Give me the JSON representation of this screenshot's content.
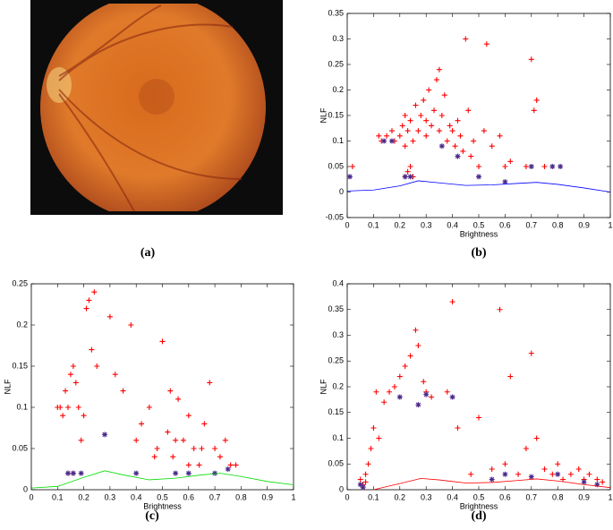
{
  "image_caption": "(a)",
  "chart_data": [
    {
      "type": "scatter",
      "caption": "(b)",
      "xlabel": "Brightness",
      "ylabel": "NLF",
      "xlim": [
        0,
        1
      ],
      "xticks": [
        0,
        0.1,
        0.2,
        0.3,
        0.4,
        0.5,
        0.6,
        0.7,
        0.8,
        0.9,
        1
      ],
      "ylim": [
        -0.05,
        0.35
      ],
      "yticks": [
        -0.05,
        0,
        0.05,
        0.1,
        0.15,
        0.2,
        0.25,
        0.3,
        0.35
      ],
      "series": [
        {
          "type": "scatter",
          "marker": "+",
          "color": "#ff0000",
          "x": [
            0.02,
            0.12,
            0.13,
            0.15,
            0.17,
            0.18,
            0.2,
            0.21,
            0.22,
            0.22,
            0.23,
            0.24,
            0.25,
            0.26,
            0.27,
            0.28,
            0.29,
            0.3,
            0.3,
            0.31,
            0.32,
            0.33,
            0.34,
            0.35,
            0.35,
            0.36,
            0.37,
            0.38,
            0.39,
            0.4,
            0.41,
            0.42,
            0.43,
            0.44,
            0.45,
            0.46,
            0.47,
            0.48,
            0.5,
            0.52,
            0.53,
            0.55,
            0.58,
            0.6,
            0.62,
            0.68,
            0.7,
            0.71,
            0.72,
            0.75,
            0.22,
            0.23,
            0.24,
            0.25
          ],
          "values": [
            0.05,
            0.11,
            0.1,
            0.11,
            0.12,
            0.1,
            0.11,
            0.13,
            0.15,
            0.09,
            0.12,
            0.14,
            0.1,
            0.17,
            0.12,
            0.15,
            0.18,
            0.11,
            0.14,
            0.2,
            0.13,
            0.16,
            0.22,
            0.24,
            0.12,
            0.15,
            0.19,
            0.1,
            0.13,
            0.12,
            0.09,
            0.14,
            0.11,
            0.08,
            0.3,
            0.16,
            0.07,
            0.1,
            0.05,
            0.12,
            0.29,
            0.09,
            0.11,
            0.05,
            0.06,
            0.05,
            0.26,
            0.16,
            0.18,
            0.05,
            0.03,
            0.04,
            0.05,
            0.03
          ]
        },
        {
          "type": "scatter",
          "marker": "*",
          "color": "#4b2a8c",
          "x": [
            0.01,
            0.14,
            0.17,
            0.22,
            0.24,
            0.36,
            0.42,
            0.5,
            0.6,
            0.7,
            0.78,
            0.81
          ],
          "values": [
            0.03,
            0.1,
            0.1,
            0.03,
            0.03,
            0.09,
            0.07,
            0.03,
            0.02,
            0.05,
            0.05,
            0.05
          ]
        },
        {
          "type": "line",
          "color": "#0000ff",
          "x": [
            0,
            0.1,
            0.2,
            0.27,
            0.35,
            0.45,
            0.55,
            0.65,
            0.72,
            0.8,
            0.9,
            1
          ],
          "values": [
            0.002,
            0.004,
            0.012,
            0.022,
            0.018,
            0.013,
            0.014,
            0.017,
            0.019,
            0.015,
            0.008,
            0.0
          ]
        }
      ]
    },
    {
      "type": "scatter",
      "caption": "(c)",
      "xlabel": "Brightness",
      "ylabel": "NLF",
      "xlim": [
        0,
        1
      ],
      "xticks": [
        0,
        0.1,
        0.2,
        0.3,
        0.4,
        0.5,
        0.6,
        0.7,
        0.8,
        0.9,
        1
      ],
      "ylim": [
        0,
        0.25
      ],
      "yticks": [
        0,
        0.05,
        0.1,
        0.15,
        0.2,
        0.25
      ],
      "series": [
        {
          "type": "scatter",
          "marker": "+",
          "color": "#ff0000",
          "x": [
            0.1,
            0.11,
            0.12,
            0.13,
            0.14,
            0.15,
            0.16,
            0.17,
            0.18,
            0.19,
            0.2,
            0.21,
            0.22,
            0.23,
            0.24,
            0.25,
            0.3,
            0.32,
            0.35,
            0.38,
            0.4,
            0.42,
            0.45,
            0.48,
            0.5,
            0.52,
            0.54,
            0.56,
            0.58,
            0.6,
            0.62,
            0.64,
            0.66,
            0.68,
            0.7,
            0.72,
            0.74,
            0.76,
            0.78,
            0.53,
            0.47,
            0.55,
            0.6,
            0.65,
            0.14,
            0.16
          ],
          "values": [
            0.1,
            0.1,
            0.09,
            0.12,
            0.1,
            0.14,
            0.15,
            0.13,
            0.1,
            0.06,
            0.09,
            0.22,
            0.23,
            0.17,
            0.24,
            0.15,
            0.21,
            0.14,
            0.12,
            0.2,
            0.06,
            0.08,
            0.1,
            0.05,
            0.18,
            0.07,
            0.04,
            0.11,
            0.06,
            0.09,
            0.05,
            0.03,
            0.08,
            0.13,
            0.05,
            0.04,
            0.06,
            0.03,
            0.03,
            0.12,
            0.04,
            0.06,
            0.03,
            0.05,
            0.02,
            0.02
          ]
        },
        {
          "type": "scatter",
          "marker": "*",
          "color": "#4b2a8c",
          "x": [
            0.14,
            0.16,
            0.19,
            0.28,
            0.4,
            0.55,
            0.6,
            0.7,
            0.75
          ],
          "values": [
            0.02,
            0.02,
            0.02,
            0.067,
            0.02,
            0.02,
            0.02,
            0.02,
            0.025
          ]
        },
        {
          "type": "line",
          "color": "#00dd00",
          "x": [
            0,
            0.1,
            0.2,
            0.28,
            0.35,
            0.45,
            0.55,
            0.65,
            0.72,
            0.8,
            0.9,
            1
          ],
          "values": [
            0.002,
            0.004,
            0.015,
            0.023,
            0.018,
            0.012,
            0.014,
            0.018,
            0.02,
            0.016,
            0.01,
            0.006
          ]
        }
      ]
    },
    {
      "type": "scatter",
      "caption": "(d)",
      "xlabel": "Brightness",
      "ylabel": "NLF",
      "xlim": [
        0,
        1
      ],
      "xticks": [
        0,
        0.1,
        0.2,
        0.3,
        0.4,
        0.5,
        0.6,
        0.7,
        0.8,
        0.9,
        1
      ],
      "ylim": [
        0,
        0.4
      ],
      "yticks": [
        0,
        0.05,
        0.1,
        0.15,
        0.2,
        0.25,
        0.3,
        0.35,
        0.4
      ],
      "series": [
        {
          "type": "scatter",
          "marker": "+",
          "color": "#ff0000",
          "x": [
            0.05,
            0.06,
            0.07,
            0.08,
            0.09,
            0.1,
            0.11,
            0.12,
            0.14,
            0.16,
            0.18,
            0.2,
            0.22,
            0.24,
            0.26,
            0.27,
            0.29,
            0.3,
            0.32,
            0.38,
            0.4,
            0.42,
            0.47,
            0.5,
            0.55,
            0.58,
            0.6,
            0.62,
            0.65,
            0.68,
            0.7,
            0.72,
            0.75,
            0.78,
            0.8,
            0.82,
            0.85,
            0.88,
            0.9,
            0.92,
            0.95,
            0.97,
            0.06,
            0.07
          ],
          "values": [
            0.02,
            0.01,
            0.03,
            0.05,
            0.08,
            0.12,
            0.19,
            0.1,
            0.17,
            0.19,
            0.2,
            0.22,
            0.24,
            0.26,
            0.31,
            0.28,
            0.21,
            0.19,
            0.18,
            0.19,
            0.365,
            0.12,
            0.03,
            0.14,
            0.04,
            0.35,
            0.05,
            0.22,
            0.03,
            0.08,
            0.265,
            0.1,
            0.04,
            0.03,
            0.05,
            0.02,
            0.03,
            0.04,
            0.02,
            0.03,
            0.02,
            0.015,
            0.005,
            0.015
          ]
        },
        {
          "type": "scatter",
          "marker": "*",
          "color": "#4b2a8c",
          "x": [
            0.05,
            0.06,
            0.2,
            0.27,
            0.3,
            0.4,
            0.55,
            0.6,
            0.7,
            0.8,
            0.9,
            0.95
          ],
          "values": [
            0.01,
            0.005,
            0.18,
            0.165,
            0.185,
            0.18,
            0.02,
            0.03,
            0.025,
            0.03,
            0.015,
            0.01
          ]
        },
        {
          "type": "line",
          "color": "#ff0000",
          "x": [
            0.1,
            0.2,
            0.28,
            0.35,
            0.45,
            0.55,
            0.65,
            0.72,
            0.8,
            0.9,
            1
          ],
          "values": [
            0.0,
            0.012,
            0.022,
            0.019,
            0.013,
            0.014,
            0.018,
            0.021,
            0.017,
            0.01,
            0.004
          ]
        }
      ]
    }
  ]
}
